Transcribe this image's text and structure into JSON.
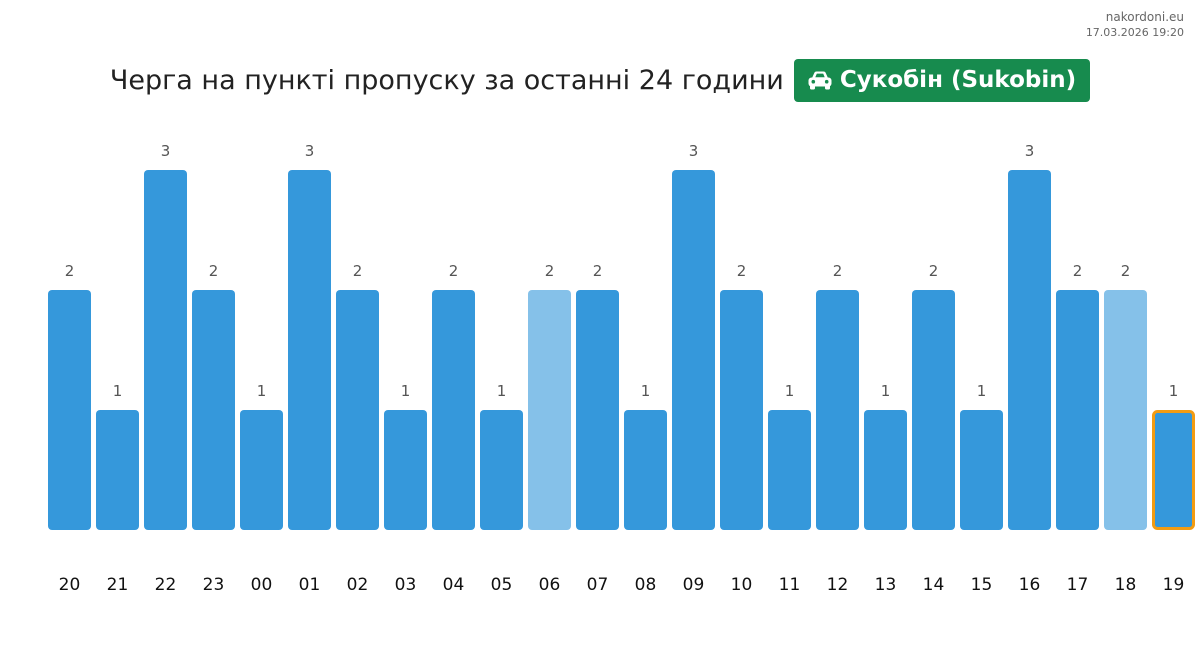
{
  "site": {
    "domain": "nakordoni.eu",
    "timestamp": "17.03.2026 19:20"
  },
  "header": {
    "title": "Черга на пункті пропуску за останні 24 години",
    "checkpoint": "Сукобін (Sukobin)",
    "checkpoint_icon": "car-icon"
  },
  "colors": {
    "bar": "#3598db",
    "bar_light": "#85c1e9",
    "highlight_border": "#f39c12",
    "badge": "#178b4e"
  },
  "chart_data": {
    "type": "bar",
    "categories": [
      "20",
      "21",
      "22",
      "23",
      "00",
      "01",
      "02",
      "03",
      "04",
      "05",
      "06",
      "07",
      "08",
      "09",
      "10",
      "11",
      "12",
      "13",
      "14",
      "15",
      "16",
      "17",
      "18",
      "19"
    ],
    "values": [
      2,
      1,
      3,
      2,
      1,
      3,
      2,
      1,
      2,
      1,
      2,
      2,
      1,
      3,
      2,
      1,
      2,
      1,
      2,
      1,
      3,
      2,
      2,
      1
    ],
    "light_bars": [
      "06",
      "18"
    ],
    "highlighted": "19",
    "ylim": [
      0,
      3
    ],
    "title": "",
    "xlabel": "",
    "ylabel": "",
    "grid": false,
    "legend": "none"
  }
}
